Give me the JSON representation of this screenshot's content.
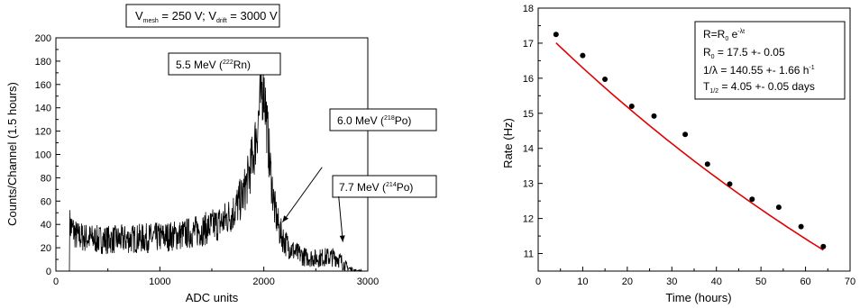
{
  "charts": [
    {
      "id": "spectrum",
      "title_parts": {
        "v1": "V",
        "s1": "mesh",
        "m1": " = 250 V; V",
        "s2": "drift",
        "m2": " = 3000 V"
      },
      "xlabel": "ADC units",
      "ylabel": "Counts/Channel (1.5 hours)",
      "annotations": [
        {
          "pre": "5.5 MeV (",
          "sup": "222",
          "post": "Rn)"
        },
        {
          "pre": "6.0 MeV (",
          "sup": "218",
          "post": "Po)"
        },
        {
          "pre": "7.7 MeV (",
          "sup": "214",
          "post": "Po)"
        }
      ]
    },
    {
      "id": "decay",
      "xlabel": "Time (hours)",
      "ylabel": "Rate (Hz)",
      "legend": {
        "l1": {
          "pre": "R=R",
          "sub": "0",
          "mid": " e",
          "sup": "-λt"
        },
        "l2": {
          "pre": "R",
          "sub": "0",
          "post": " = 17.5 +- 0.05"
        },
        "l3": {
          "pre": "1/λ = 140.55 +- 1.66 h",
          "sup": "-1"
        },
        "l4": {
          "pre": "T",
          "sub": "1/2",
          "post": " = 4.05 +- 0.05 days"
        }
      }
    }
  ],
  "chart_data": [
    {
      "type": "line",
      "color": "#000000",
      "xlim": [
        0,
        3000
      ],
      "ylim": [
        0,
        200
      ],
      "xticks": [
        0,
        1000,
        2000,
        3000
      ],
      "yticks": [
        0,
        20,
        40,
        60,
        80,
        100,
        120,
        140,
        160,
        180,
        200
      ],
      "profile": [
        [
          130,
          0
        ],
        [
          132,
          40
        ],
        [
          200,
          30
        ],
        [
          400,
          27
        ],
        [
          600,
          27
        ],
        [
          800,
          28
        ],
        [
          1000,
          29
        ],
        [
          1200,
          31
        ],
        [
          1400,
          35
        ],
        [
          1600,
          42
        ],
        [
          1700,
          50
        ],
        [
          1800,
          65
        ],
        [
          1850,
          80
        ],
        [
          1900,
          100
        ],
        [
          1940,
          125
        ],
        [
          1970,
          148
        ],
        [
          1990,
          158
        ],
        [
          2000,
          160
        ],
        [
          2010,
          150
        ],
        [
          2030,
          125
        ],
        [
          2060,
          90
        ],
        [
          2100,
          55
        ],
        [
          2150,
          35
        ],
        [
          2200,
          25
        ],
        [
          2300,
          16
        ],
        [
          2400,
          12
        ],
        [
          2500,
          11
        ],
        [
          2600,
          12
        ],
        [
          2700,
          12
        ],
        [
          2750,
          8
        ],
        [
          2800,
          3
        ],
        [
          2850,
          1
        ],
        [
          2900,
          0
        ],
        [
          3000,
          0
        ]
      ],
      "arrows": [
        {
          "from": [
            2560,
            89
          ],
          "to": [
            2180,
            42
          ]
        },
        {
          "from": [
            2720,
            64
          ],
          "to": [
            2760,
            25
          ]
        }
      ]
    },
    {
      "type": "scatter",
      "xlim": [
        0,
        70
      ],
      "ylim": [
        10.5,
        18
      ],
      "xticks": [
        0,
        10,
        20,
        30,
        40,
        50,
        60,
        70
      ],
      "yticks": [
        11,
        12,
        13,
        14,
        15,
        16,
        17,
        18
      ],
      "points": [
        [
          4,
          17.25
        ],
        [
          10,
          16.65
        ],
        [
          15,
          15.97
        ],
        [
          21,
          15.2
        ],
        [
          26,
          14.92
        ],
        [
          33,
          14.4
        ],
        [
          38,
          13.55
        ],
        [
          43,
          12.98
        ],
        [
          48,
          12.55
        ],
        [
          54,
          12.32
        ],
        [
          59,
          11.77
        ],
        [
          64,
          11.2
        ]
      ],
      "fit": {
        "color": "#e00000",
        "R0": 17.5,
        "inv_lambda": 140.55
      }
    }
  ]
}
